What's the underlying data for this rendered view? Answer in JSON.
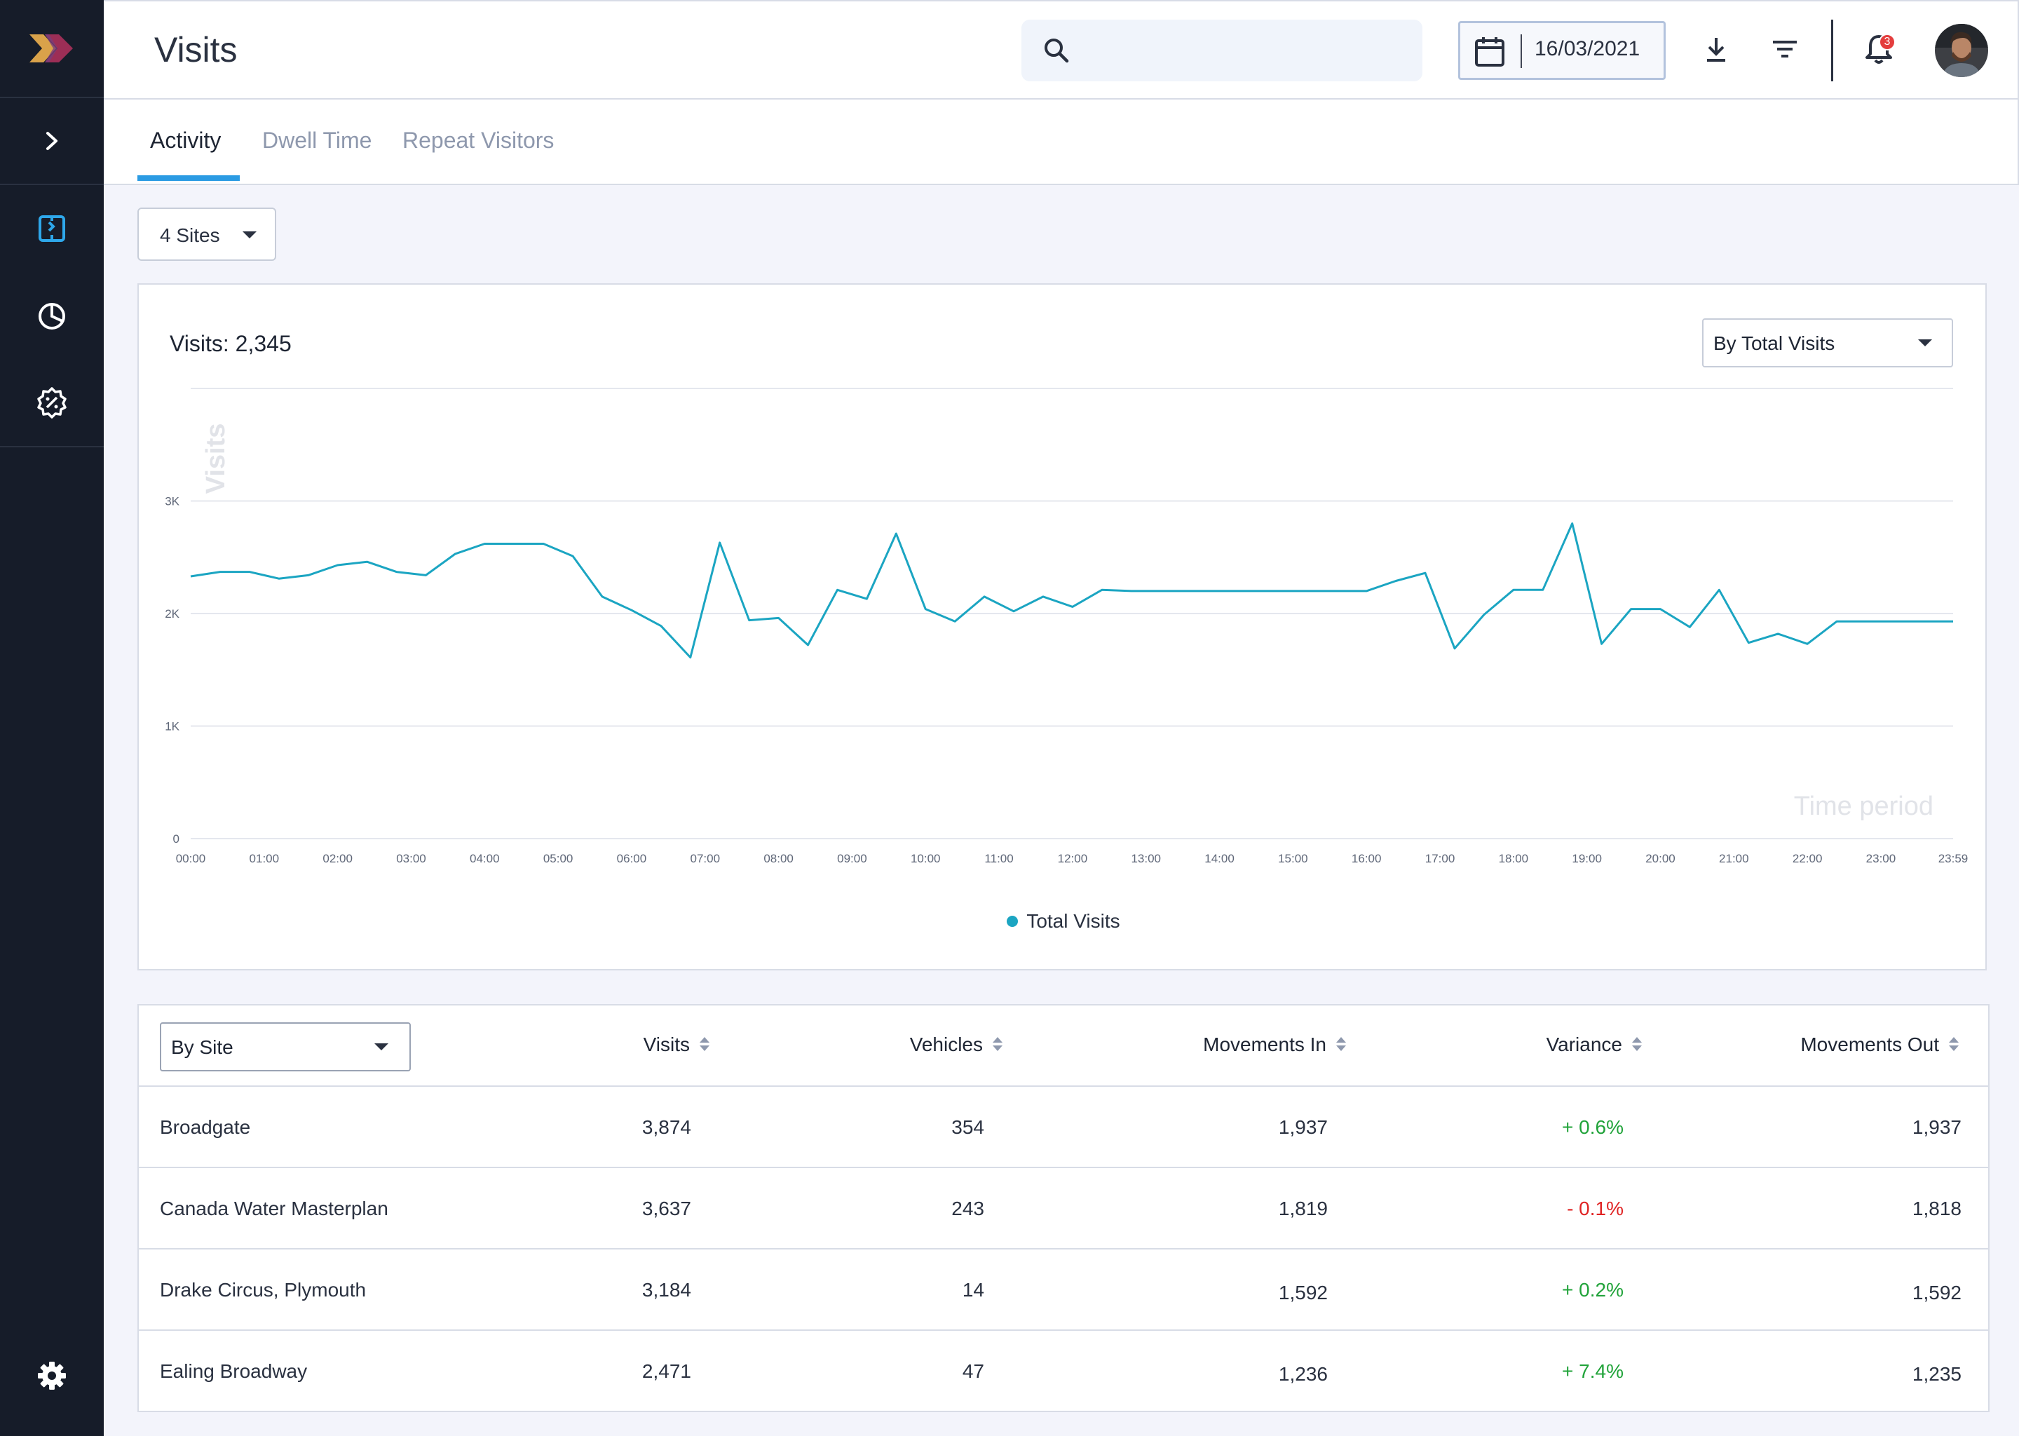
{
  "app": {
    "page_title": "Visits"
  },
  "header": {
    "search_placeholder": "",
    "date": "16/03/2021",
    "notification_count": "3"
  },
  "tabs": [
    {
      "label": "Activity",
      "active": true
    },
    {
      "label": "Dwell Time",
      "active": false
    },
    {
      "label": "Repeat Visitors",
      "active": false
    }
  ],
  "filters": {
    "sites": "4 Sites",
    "metric": "By Total Visits",
    "grouping": "By Site"
  },
  "chart_title": "Visits: 2,345",
  "chart_data": {
    "type": "line",
    "ylabel": "Visits",
    "xlabel": "Time period",
    "ylim": [
      0,
      4000
    ],
    "yticks": [
      {
        "value": 0,
        "label": "0"
      },
      {
        "value": 1000,
        "label": "1K"
      },
      {
        "value": 2000,
        "label": "2K"
      },
      {
        "value": 3000,
        "label": "3K"
      }
    ],
    "xticks": [
      "00:00",
      "01:00",
      "02:00",
      "03:00",
      "04:00",
      "05:00",
      "06:00",
      "07:00",
      "08:00",
      "09:00",
      "10:00",
      "11:00",
      "12:00",
      "13:00",
      "14:00",
      "15:00",
      "16:00",
      "17:00",
      "18:00",
      "19:00",
      "20:00",
      "21:00",
      "22:00",
      "23:00",
      "23:59"
    ],
    "grid": true,
    "legend_position": "bottom",
    "series": [
      {
        "name": "Total Visits",
        "color": "#1ba5c2",
        "x_hours": [
          0,
          0.4,
          0.8,
          1.2,
          1.6,
          2,
          2.4,
          2.8,
          3.2,
          3.6,
          4,
          4.4,
          4.8,
          5.2,
          5.6,
          6,
          6.4,
          6.8,
          7.2,
          7.6,
          8,
          8.4,
          8.8,
          9.2,
          9.6,
          10,
          10.4,
          10.8,
          11.2,
          11.6,
          12,
          12.4,
          12.8,
          13.2,
          13.6,
          14,
          14.4,
          14.8,
          15.2,
          15.6,
          16,
          16.4,
          16.8,
          17.2,
          17.6,
          18,
          18.4,
          18.8,
          19.2,
          19.6,
          20,
          20.4,
          20.8,
          21.2,
          21.6,
          22,
          22.4,
          22.8,
          23.2,
          23.6,
          23.983
        ],
        "values": [
          2330,
          2370,
          2370,
          2310,
          2340,
          2430,
          2460,
          2370,
          2340,
          2530,
          2620,
          2620,
          2620,
          2510,
          2150,
          2030,
          1890,
          1610,
          2630,
          1940,
          1960,
          1720,
          2210,
          2130,
          2710,
          2040,
          1930,
          2150,
          2020,
          2150,
          2060,
          2210,
          2200,
          2200,
          2200,
          2200,
          2200,
          2200,
          2200,
          2200,
          2200,
          2290,
          2360,
          1690,
          1990,
          2210,
          2210,
          2800,
          1730,
          2040,
          2040,
          1880,
          2210,
          1740,
          1820,
          1730,
          1930,
          1930,
          1930,
          1930,
          1930
        ]
      }
    ]
  },
  "table": {
    "columns": [
      "Visits",
      "Vehicles",
      "Movements In",
      "Variance",
      "Movements Out"
    ],
    "rows": [
      {
        "site": "Broadgate",
        "visits": "3,874",
        "vehicles": "354",
        "movements_in": "1,937",
        "variance": "+ 0.6%",
        "variance_sign": "pos",
        "movements_out": "1,937"
      },
      {
        "site": "Canada Water Masterplan",
        "visits": "3,637",
        "vehicles": "243",
        "movements_in": "1,819",
        "variance": "- 0.1%",
        "variance_sign": "neg",
        "movements_out": "1,818"
      },
      {
        "site": "Drake Circus, Plymouth",
        "visits": "3,184",
        "vehicles": "14",
        "movements_in": "1,592",
        "variance": "+ 0.2%",
        "variance_sign": "pos",
        "movements_out": "1,592"
      },
      {
        "site": "Ealing Broadway",
        "visits": "2,471",
        "vehicles": "47",
        "movements_in": "1,236",
        "variance": "+ 7.4%",
        "variance_sign": "pos",
        "movements_out": "1,235"
      }
    ]
  },
  "icons": {
    "logo": "logo-icon",
    "expand": "chevron-right-icon",
    "nav": [
      "visits-icon",
      "pie-chart-icon",
      "discount-badge-icon"
    ],
    "settings": "gear-icon",
    "search": "search-icon",
    "calendar": "calendar-icon",
    "download": "download-icon",
    "filter": "filter-icon",
    "bell": "bell-icon"
  }
}
